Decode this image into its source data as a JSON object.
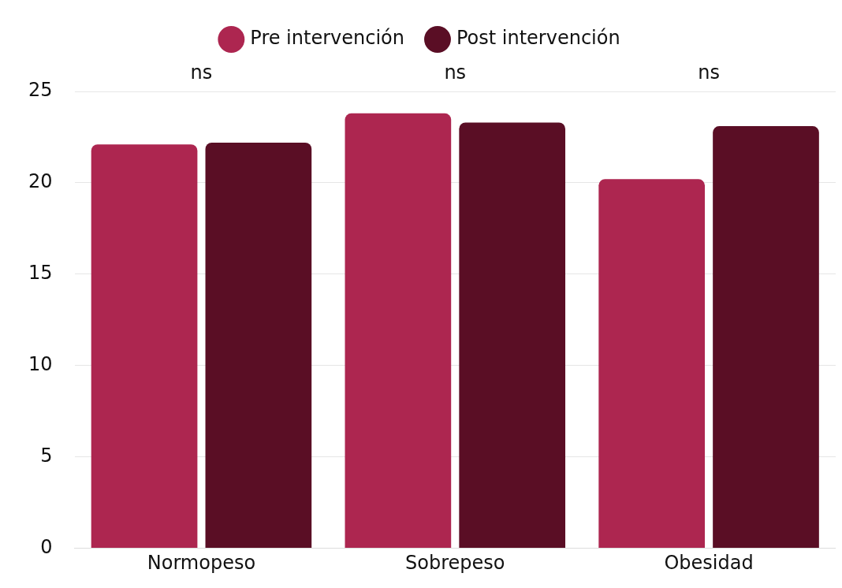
{
  "chart_data": {
    "type": "bar",
    "categories": [
      "Normopeso",
      "Sobrepeso",
      "Obesidad"
    ],
    "series": [
      {
        "name": "Pre intervención",
        "color": "#ad2650",
        "values": [
          22.1,
          23.8,
          20.2
        ]
      },
      {
        "name": "Post intervención",
        "color": "#5a0e25",
        "values": [
          22.2,
          23.3,
          23.1
        ]
      }
    ],
    "ylim": [
      0,
      25
    ],
    "yticks": [
      0,
      5,
      10,
      15,
      20,
      25
    ],
    "grid": "y",
    "legend": "top",
    "annotations": [
      "ns",
      "ns",
      "ns"
    ]
  }
}
